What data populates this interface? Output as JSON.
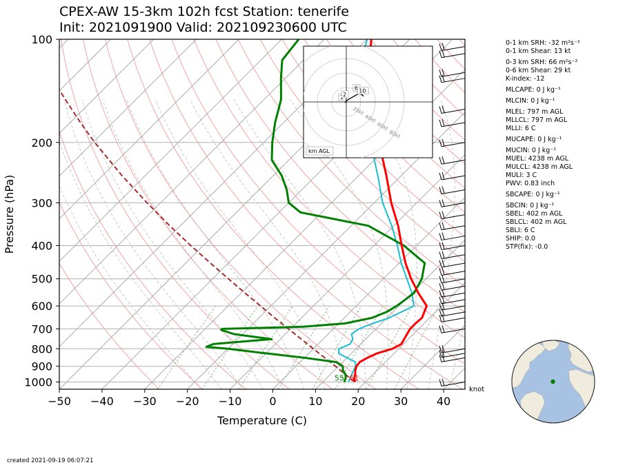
{
  "header": {
    "title_line1": "CPEX-AW 15-3km  102h fcst  Station: tenerife",
    "title_line2": "Init: 2021091900  Valid: 202109230600 UTC"
  },
  "chart_data": {
    "type": "line",
    "skew_t": true,
    "xlabel": "Temperature (C)",
    "ylabel": "Pressure (hPa)",
    "xlim": [
      -50,
      45
    ],
    "ylim": [
      1050,
      100
    ],
    "y_scale": "log",
    "x_ticks": [
      "−50",
      "−40",
      "−30",
      "−20",
      "−10",
      "0",
      "10",
      "20",
      "30",
      "40"
    ],
    "x_tick_values": [
      -50,
      -40,
      -30,
      -20,
      -10,
      0,
      10,
      20,
      30,
      40
    ],
    "y_ticks": [
      "100",
      "200",
      "300",
      "400",
      "500",
      "600",
      "700",
      "800",
      "900",
      "1000"
    ],
    "y_tick_values": [
      100,
      200,
      300,
      400,
      500,
      600,
      700,
      800,
      900,
      1000
    ],
    "surface_temperature_label": "61",
    "surface_dewpoint_label": "55",
    "wind_unit": "knot",
    "colors": {
      "temperature": "#ff0000",
      "dewpoint": "#008000",
      "virtual_temperature": "#17becf",
      "parcel": "#a52a2a",
      "isotherm": "#aaaaaa",
      "dry_adiabat": "#f4a3a3",
      "moist_adiabat": "#bbbbbb",
      "mixing_ratio": "#6ab26a"
    },
    "series": [
      {
        "key": "temperature",
        "p": [
          1000,
          975,
          950,
          925,
          900,
          875,
          850,
          825,
          800,
          775,
          750,
          725,
          700,
          675,
          650,
          600,
          550,
          500,
          450,
          400,
          350,
          300,
          250,
          200,
          175,
          150,
          125,
          110,
          100
        ],
        "t": [
          17.5,
          16.5,
          15.8,
          14.9,
          14.2,
          14.0,
          14.8,
          16.0,
          18.5,
          19.5,
          19.0,
          18.5,
          18.0,
          18.0,
          18.2,
          16.5,
          11.5,
          6.5,
          1.5,
          -3.5,
          -9.0,
          -16.0,
          -23.5,
          -33.0,
          -38.5,
          -44.5,
          -52.0,
          -56.0,
          -59.0
        ]
      },
      {
        "key": "dewpoint",
        "p": [
          1000,
          975,
          950,
          925,
          900,
          875,
          850,
          825,
          800,
          790,
          775,
          750,
          725,
          705,
          700,
          690,
          675,
          650,
          625,
          600,
          575,
          550,
          500,
          450,
          400,
          350,
          320,
          300,
          275,
          250,
          225,
          200,
          175,
          150,
          130,
          115,
          100
        ],
        "t": [
          15.0,
          14.5,
          13.5,
          12.0,
          11.0,
          8.5,
          0.0,
          -10.0,
          -20.0,
          -25.5,
          -24.5,
          -12.0,
          -22.0,
          -26.0,
          -26.0,
          -7.5,
          1.5,
          6.5,
          8.5,
          9.5,
          10.0,
          10.5,
          9.0,
          6.0,
          -3.0,
          -16.0,
          -35.0,
          -40.0,
          -43.5,
          -48.0,
          -54.0,
          -58.0,
          -62.0,
          -66.0,
          -71.0,
          -75.0,
          -76.0
        ]
      },
      {
        "key": "virtual_temperature",
        "p": [
          1000,
          975,
          950,
          925,
          900,
          875,
          850,
          825,
          800,
          775,
          750,
          725,
          700,
          675,
          650,
          600,
          550,
          500,
          450,
          400,
          350,
          300,
          250,
          200,
          175,
          150,
          125,
          110,
          100
        ],
        "t": [
          16.0,
          15.5,
          15.0,
          14.5,
          14.0,
          13.0,
          10.0,
          7.0,
          6.0,
          7.5,
          7.0,
          5.5,
          6.0,
          8.0,
          10.5,
          13.5,
          10.0,
          5.5,
          0.5,
          -4.5,
          -10.5,
          -18.0,
          -25.5,
          -35.0,
          -40.5,
          -46.5,
          -53.5,
          -57.5,
          -60.0
        ]
      },
      {
        "key": "parcel",
        "p": [
          1000,
          900,
          800,
          700,
          650,
          600,
          550,
          500,
          450,
          400,
          350,
          300,
          250,
          200,
          175,
          150,
          125,
          110,
          100
        ],
        "t": [
          17.5,
          9.3,
          0.0,
          -10.5,
          -16.3,
          -22.4,
          -29.1,
          -36.3,
          -44.2,
          -52.9,
          -62.5,
          -73.2,
          -85.4,
          -99.6,
          -107.6,
          -116.5,
          -126.8,
          -133.7,
          -138.5
        ]
      }
    ],
    "hodograph": {
      "label": "km AGL",
      "ring_labels": [
        "20kt",
        "40kt",
        "60kt",
        "80kt"
      ],
      "ring_values": [
        20,
        40,
        60,
        80
      ],
      "points": [
        {
          "label": "1",
          "u": -2,
          "v": -1
        },
        {
          "label": "2",
          "u": 2,
          "v": 3
        },
        {
          "label": "6",
          "u": 18,
          "v": 12
        },
        {
          "label": "10",
          "u": 24,
          "v": 8
        }
      ]
    },
    "parameters": [
      "0-1 km SRH: -32 m²s⁻²",
      "0-1 km Shear: 13 kt",
      "0-3 km SRH: 66 m²s⁻²",
      "0-6 km Shear: 29 kt",
      "K-index: -12",
      "MLCAPE: 0 J kg⁻¹",
      "MLCIN: 0 J kg⁻¹",
      "MLEL: 797 m AGL",
      "MLLCL: 797 m AGL",
      "MLLI: 6 C",
      "MUCAPE: 0 J kg⁻¹",
      "MUCIN: 0 J kg⁻¹",
      "MUEL: 4238 m AGL",
      "MULCL: 4238 m AGL",
      "MULI: 3 C",
      "PWV: 0.83 inch",
      "SBCAPE: 0 J kg⁻¹",
      "SBCIN: 0 J kg⁻¹",
      "SBEL: 402 m AGL",
      "SBLCL: 402 m AGL",
      "SBLI: 6 C",
      "SHIP: 0.0",
      "STP(fix): -0.0"
    ],
    "globe_marker_color": "#008000"
  },
  "footer": {
    "created": "created 2021-09-19 06:07:21"
  }
}
